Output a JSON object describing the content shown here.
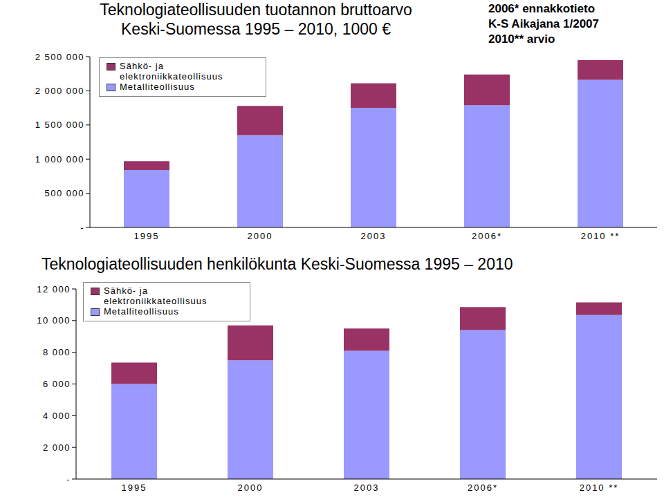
{
  "chart_data": [
    {
      "type": "bar",
      "title": "Teknologiateollisuuden tuotannon bruttoarvo\nKeski-Suomessa 1995 – 2010, 1000 €",
      "annotations": [
        "2006* ennakkotieto",
        "K-S Aikajana 1/2007",
        "2010** arvio"
      ],
      "categories": [
        "1995",
        "2000",
        "2003",
        "2006*",
        "2010 **"
      ],
      "series": [
        {
          "name": "Metalliteollisuus",
          "color": "#9999ff",
          "values": [
            840000,
            1350000,
            1750000,
            1790000,
            2160000
          ]
        },
        {
          "name": "Sähkö- ja elektroniikkateollisuus",
          "color": "#993366",
          "values": [
            130000,
            430000,
            360000,
            450000,
            290000
          ]
        }
      ],
      "stacked": true,
      "legend": "upper left",
      "grid": false,
      "ylim": [
        0,
        2500000
      ],
      "yticks": [
        {
          "value": 0,
          "label": "-"
        },
        {
          "value": 500000,
          "label": "500 000"
        },
        {
          "value": 1000000,
          "label": "1 000 000"
        },
        {
          "value": 1500000,
          "label": "1 500 000"
        },
        {
          "value": 2000000,
          "label": "2 000 000"
        },
        {
          "value": 2500000,
          "label": "2 500 000"
        }
      ]
    },
    {
      "type": "bar",
      "title": "Teknologiateollisuuden henkilökunta Keski-Suomessa 1995 – 2010",
      "categories": [
        "1995",
        "2000",
        "2003",
        "2006*",
        "2010 **"
      ],
      "series": [
        {
          "name": "Metalliteollisuus",
          "color": "#9999ff",
          "values": [
            6000,
            7500,
            8100,
            9400,
            10350
          ]
        },
        {
          "name": "Sähkö- ja elektroniikkateollisuus",
          "color": "#993366",
          "values": [
            1350,
            2200,
            1400,
            1450,
            800
          ]
        }
      ],
      "stacked": true,
      "legend": "upper left",
      "grid": false,
      "ylim": [
        0,
        12000
      ],
      "yticks": [
        {
          "value": 0,
          "label": "-"
        },
        {
          "value": 2000,
          "label": "2 000"
        },
        {
          "value": 4000,
          "label": "4 000"
        },
        {
          "value": 6000,
          "label": "6 000"
        },
        {
          "value": 8000,
          "label": "8 000"
        },
        {
          "value": 10000,
          "label": "10 000"
        },
        {
          "value": 12000,
          "label": "12 000"
        }
      ]
    }
  ]
}
